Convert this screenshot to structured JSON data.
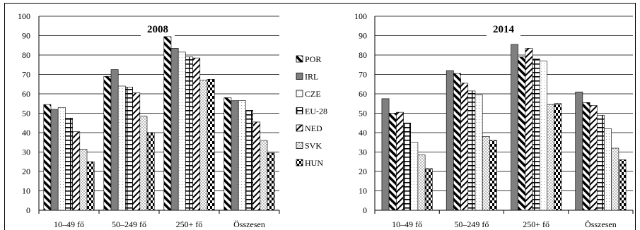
{
  "chart_data": [
    {
      "type": "bar",
      "title": "2008",
      "categories": [
        "10–49 fő",
        "50–249 fő",
        "250+ fő",
        "Összesen"
      ],
      "ylim": [
        0,
        100
      ],
      "yticks": [
        0,
        10,
        20,
        30,
        40,
        50,
        60,
        70,
        80,
        90,
        100
      ],
      "grid": true,
      "series": [
        {
          "name": "POR",
          "values": [
            54.5,
            69,
            89.5,
            58
          ]
        },
        {
          "name": "IRL",
          "values": [
            52,
            72.5,
            83.5,
            56.5
          ]
        },
        {
          "name": "CZE",
          "values": [
            53,
            64,
            81.5,
            56.5
          ]
        },
        {
          "name": "EU-28",
          "values": [
            47.5,
            63.5,
            79,
            51.5
          ]
        },
        {
          "name": "NED",
          "values": [
            40.5,
            60.5,
            78.5,
            45.5
          ]
        },
        {
          "name": "SVK",
          "values": [
            31.5,
            48.5,
            67,
            36
          ]
        },
        {
          "name": "HUN",
          "values": [
            25,
            40,
            67.5,
            29.5
          ]
        }
      ]
    },
    {
      "type": "bar",
      "title": "2014",
      "categories": [
        "10–49 fő",
        "50–249 fő",
        "250+ fő",
        "Összesen"
      ],
      "ylim": [
        0,
        100
      ],
      "yticks": [
        0,
        10,
        20,
        30,
        40,
        50,
        60,
        70,
        80,
        90,
        100
      ],
      "grid": true,
      "series": [
        {
          "name": "IRL",
          "values": [
            57.5,
            72,
            85.5,
            61
          ]
        },
        {
          "name": "POR",
          "values": [
            50,
            70.5,
            79,
            55.5
          ]
        },
        {
          "name": "NED",
          "values": [
            50.5,
            65.5,
            83.5,
            54
          ]
        },
        {
          "name": "EU-28",
          "values": [
            45,
            61.5,
            78,
            49
          ]
        },
        {
          "name": "CZE",
          "values": [
            35,
            59.5,
            77,
            42
          ]
        },
        {
          "name": "SVK",
          "values": [
            28.5,
            38,
            54.5,
            32
          ]
        },
        {
          "name": "HUN",
          "values": [
            21.5,
            36,
            55,
            26
          ]
        }
      ]
    }
  ],
  "legend": {
    "placement": "between-charts",
    "items": [
      "POR",
      "IRL",
      "CZE",
      "EU-28",
      "NED",
      "SVK",
      "HUN"
    ]
  }
}
